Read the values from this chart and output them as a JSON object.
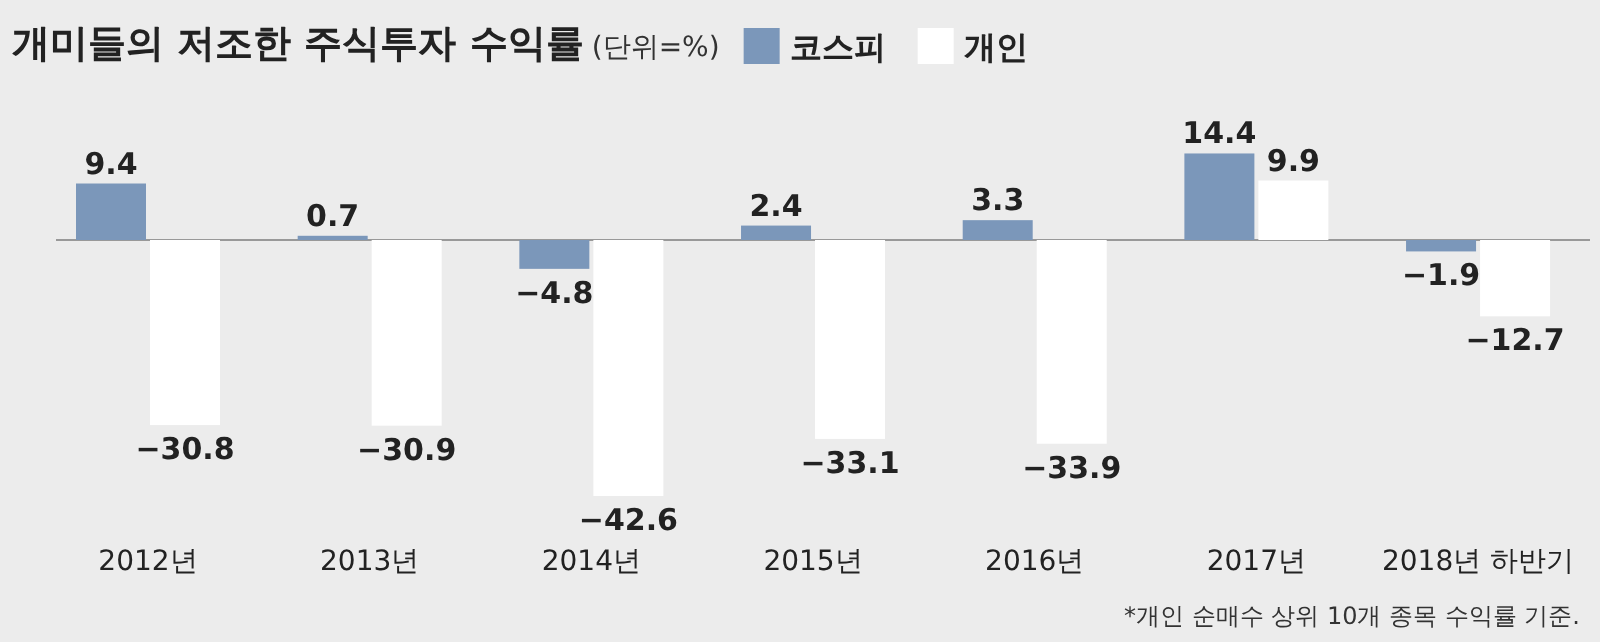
{
  "chart_data": {
    "type": "bar",
    "title": "개미들의 저조한 주식투자 수익률",
    "subtitle": "(단위=%)",
    "categories": [
      "2012년",
      "2013년",
      "2014년",
      "2015년",
      "2016년",
      "2017년",
      "2018년 하반기"
    ],
    "series": [
      {
        "name": "코스피",
        "color": "#7b97ba",
        "values": [
          9.4,
          0.7,
          -4.8,
          2.4,
          3.3,
          14.4,
          -1.9
        ]
      },
      {
        "name": "개인",
        "color": "#ffffff",
        "values": [
          -30.8,
          -30.9,
          -42.6,
          -33.1,
          -33.9,
          9.9,
          -12.7
        ]
      }
    ],
    "data_labels": true,
    "legend": "top",
    "annotations": [
      "*개인 순매수 상위 10개 종목 수익률 기준."
    ]
  }
}
